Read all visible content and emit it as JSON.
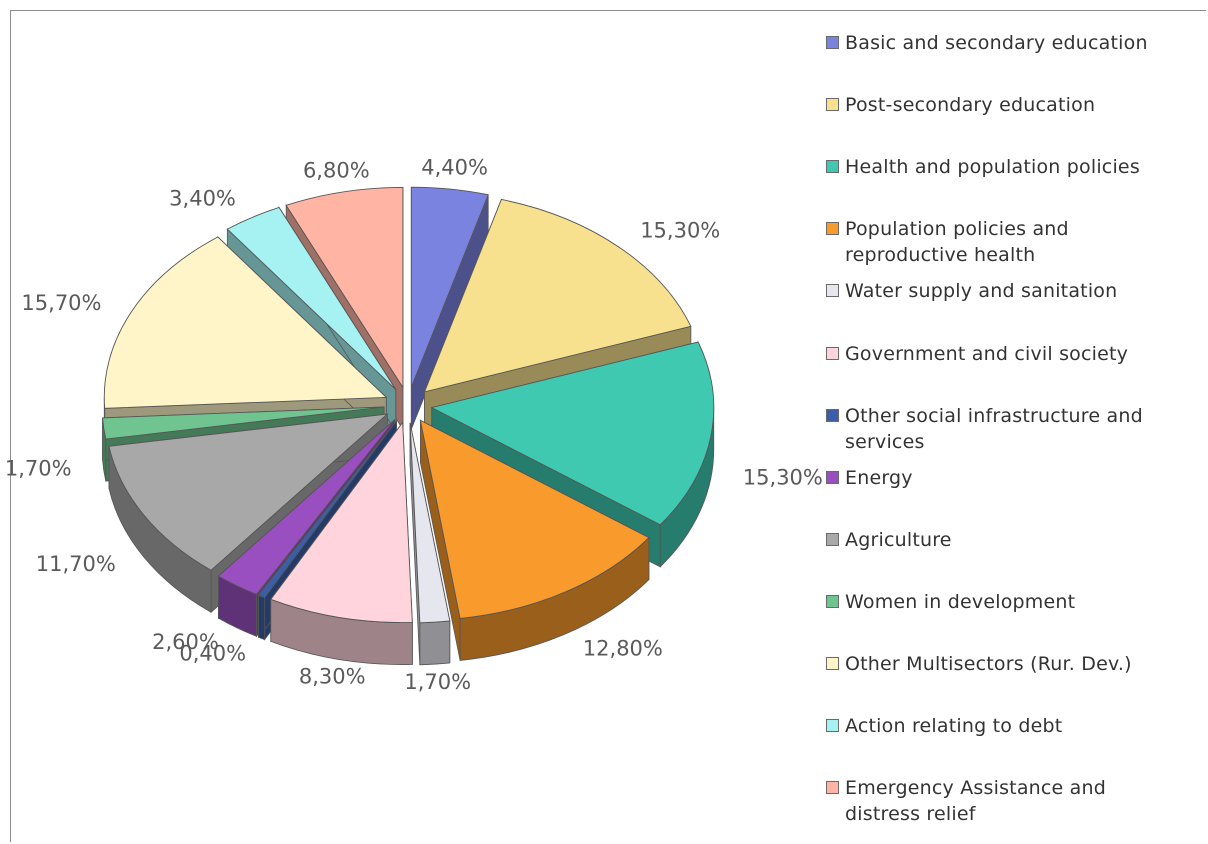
{
  "chart_data": {
    "type": "pie",
    "title": "",
    "legend_position": "right",
    "slices": [
      {
        "label": "Basic and secondary education",
        "value": 4.4,
        "display": "4,40%",
        "color": "#7b83e0"
      },
      {
        "label": "Post-secondary education",
        "value": 15.3,
        "display": "15,30%",
        "color": "#f7e08e"
      },
      {
        "label": "Health and population policies",
        "value": 15.3,
        "display": "15,30%",
        "color": "#3ec9b0"
      },
      {
        "label": "Population policies and\nreproductive health",
        "value": 12.8,
        "display": "12,80%",
        "color": "#f99a2c"
      },
      {
        "label": "Water supply and sanitation",
        "value": 1.7,
        "display": "1,70%",
        "color": "#e6e6ee"
      },
      {
        "label": "Government and civil society",
        "value": 8.3,
        "display": "8,30%",
        "color": "#ffd4dc"
      },
      {
        "label": "Other social infrastructure and\nservices",
        "value": 0.4,
        "display": "0,40%",
        "color": "#3a5fa8"
      },
      {
        "label": "Energy",
        "value": 2.6,
        "display": "2,60%",
        "color": "#9a4fc0"
      },
      {
        "label": "Agriculture",
        "value": 11.7,
        "display": "11,70%",
        "color": "#a8a8a8"
      },
      {
        "label": "Women in development",
        "value": 1.7,
        "display": "1,70%",
        "color": "#6fc48f"
      },
      {
        "label": "Other Multisectors (Rur. Dev.)",
        "value": 15.7,
        "display": "15,70%",
        "color": "#fff5c8"
      },
      {
        "label": "Action relating to debt",
        "value": 3.4,
        "display": "3,40%",
        "color": "#a6f2f2"
      },
      {
        "label": "Emergency Assistance and\ndistress relief",
        "value": 6.8,
        "display": "6,80%",
        "color": "#ffb4a4"
      }
    ]
  }
}
